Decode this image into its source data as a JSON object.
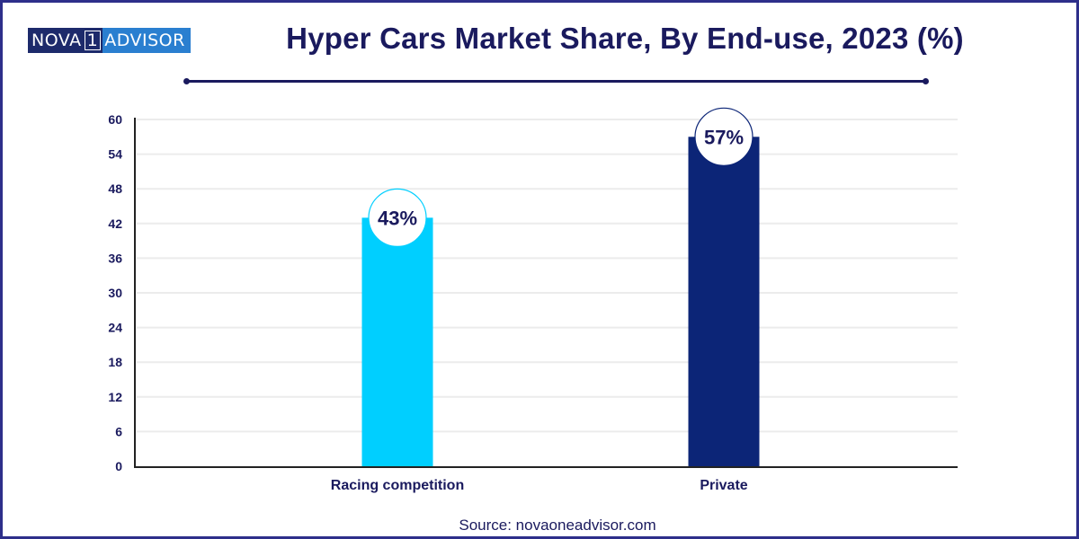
{
  "brand": {
    "logo_part1": "NOVA",
    "logo_box": "1",
    "logo_part2": "ADVISOR"
  },
  "source": "Source: novaoneadvisor.com",
  "colors": {
    "title": "#1a1a5e",
    "frame": "#2e2f8a",
    "grid": "#ececec",
    "axis": "#222222"
  },
  "chart_data": {
    "type": "bar",
    "title": "Hyper Cars Market Share, By End-use, 2023 (%)",
    "xlabel": "",
    "ylabel": "",
    "categories": [
      "Racing competition",
      "Private"
    ],
    "values": [
      43,
      57
    ],
    "data_labels": [
      "43%",
      "57%"
    ],
    "bar_colors": [
      "#00cfff",
      "#0c2577"
    ],
    "ylim": [
      0,
      60
    ],
    "yticks": [
      0,
      6,
      12,
      18,
      24,
      30,
      36,
      42,
      48,
      54,
      60
    ],
    "grid": true,
    "legend": "none"
  }
}
